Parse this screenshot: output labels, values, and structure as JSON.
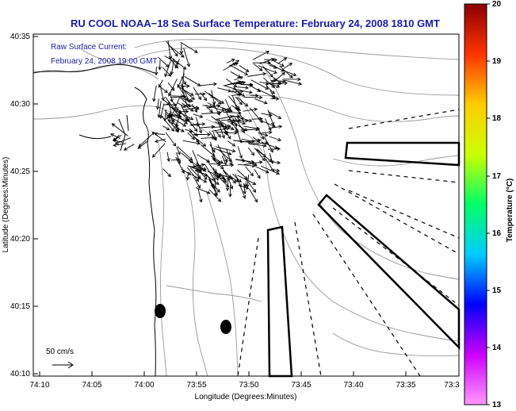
{
  "title": "RU COOL  NOAA−18  Sea Surface Temperature:  February 24, 2008 1810 GMT",
  "annotation": {
    "line1": "Raw Surface Current:",
    "line2": "February 24, 2008 19:00 GMT"
  },
  "scale_label": "50 cm/s",
  "x_axis": {
    "label": "Longitude (Degrees:Minutes)",
    "ticks": [
      "74:10",
      "74:05",
      "74:00",
      "73:55",
      "73:50",
      "73:45",
      "73:40",
      "73:35",
      "73:3"
    ]
  },
  "y_axis": {
    "label": "Latitude (Degrees:Minutes)",
    "ticks": [
      "40:35",
      "40:30",
      "40:25",
      "40:20",
      "40:15",
      "40:10"
    ]
  },
  "colorbar": {
    "label": "Temperature (°C)",
    "ticks": [
      "20",
      "19",
      "18",
      "17",
      "16",
      "15",
      "14",
      "13"
    ],
    "stops": [
      "#ff99ff",
      "#cc00ff",
      "#0000ff",
      "#00ccff",
      "#00ff66",
      "#ccff00",
      "#ffcc00",
      "#ff3300",
      "#8b0000"
    ]
  },
  "colors": {
    "title": "#1a1aa8",
    "contour": "#9a9a9a",
    "coast": "#000000"
  },
  "map_elements": [
    "current-vectors",
    "bathymetry-contours",
    "coastline",
    "shipping-lanes",
    "buoy-markers"
  ]
}
